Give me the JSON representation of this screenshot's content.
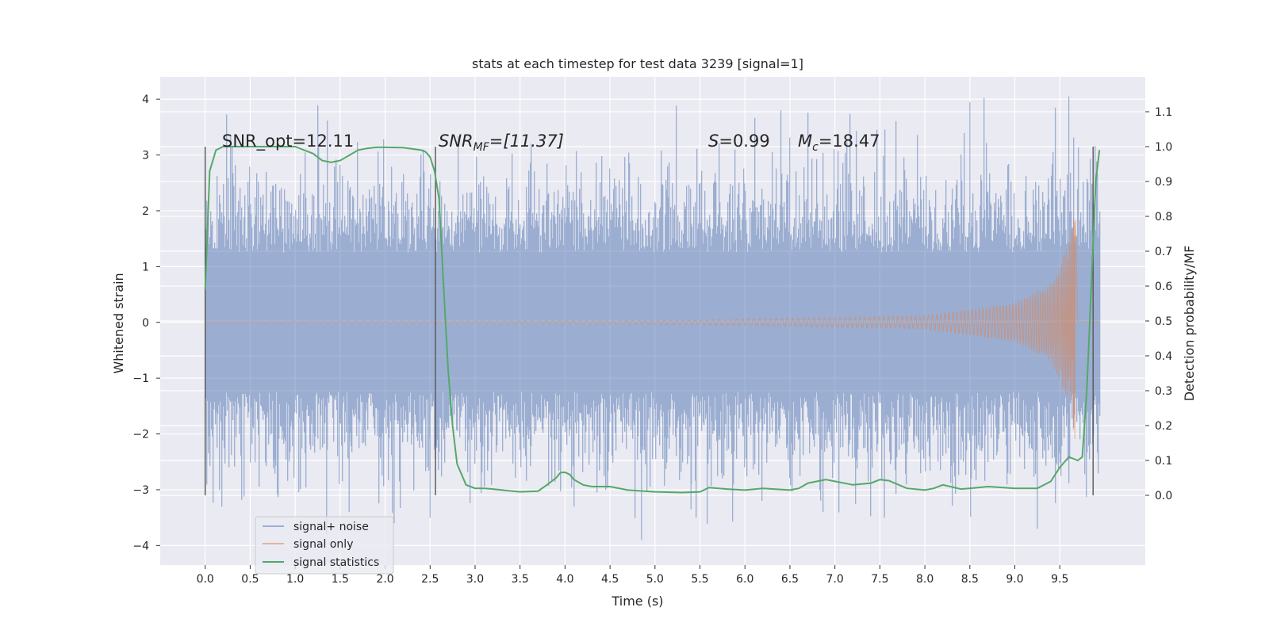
{
  "chart_data": {
    "type": "line",
    "title": "stats at each timestep for test data 3239 [signal=1]",
    "xlabel": "Time (s)",
    "ylabel": "Whitened strain",
    "y2label": "Detection probability/MF",
    "xlim": [
      -0.5,
      10.45
    ],
    "ylim": [
      -4.35,
      4.4
    ],
    "y2lim": [
      -0.2,
      1.2
    ],
    "x_ticks": [
      "0.0",
      "0.5",
      "1.0",
      "1.5",
      "2.0",
      "2.5",
      "3.0",
      "3.5",
      "4.0",
      "4.5",
      "5.0",
      "5.5",
      "6.0",
      "6.5",
      "7.0",
      "7.5",
      "8.0",
      "8.5",
      "9.0",
      "9.5"
    ],
    "y_ticks": [
      "4",
      "3",
      "2",
      "1",
      "0",
      "−1",
      "−2",
      "−3",
      "−4"
    ],
    "y2_ticks": [
      "1.1",
      "1.0",
      "0.9",
      "0.8",
      "0.7",
      "0.6",
      "0.5",
      "0.4",
      "0.3",
      "0.2",
      "0.1",
      "0.0"
    ],
    "grid": true,
    "background": "#eaeaf2",
    "legend_position": "lower-left",
    "annotations": {
      "snr_opt": "SNR_opt=12.11",
      "snr_mf_name": "SNR",
      "snr_mf_sub": "MF",
      "snr_mf_value": "=[11.37]",
      "s_name": "S",
      "s_value": "=0.99",
      "mc_name": "M",
      "mc_sub": "c",
      "mc_value": "=18.47"
    },
    "vertical_markers_x": [
      0.0,
      2.56,
      9.87
    ],
    "series": [
      {
        "name": "signal+ noise",
        "color": "#4c72b0",
        "opacity": 0.5,
        "axis": "left",
        "t_range": [
          0.0,
          9.95
        ],
        "noise_envelope_std": 1.0,
        "peak_max": 4.05,
        "peak_min": -3.95
      },
      {
        "name": "signal only",
        "color": "#dd8452",
        "opacity": 0.55,
        "axis": "left",
        "amplitude_envelope": [
          [
            0.0,
            0.01
          ],
          [
            5.0,
            0.03
          ],
          [
            8.0,
            0.12
          ],
          [
            9.0,
            0.35
          ],
          [
            9.4,
            0.7
          ],
          [
            9.6,
            1.4
          ],
          [
            9.68,
            2.25
          ]
        ],
        "merger_t": 9.68
      },
      {
        "name": "signal statistics",
        "color": "#55a868",
        "axis": "right",
        "x": [
          0.0,
          0.05,
          0.12,
          0.2,
          0.3,
          0.5,
          0.7,
          1.0,
          1.1,
          1.2,
          1.3,
          1.4,
          1.5,
          1.6,
          1.7,
          1.8,
          1.9,
          2.0,
          2.2,
          2.4,
          2.45,
          2.5,
          2.55,
          2.6,
          2.65,
          2.7,
          2.75,
          2.8,
          2.9,
          3.0,
          3.1,
          3.2,
          3.3,
          3.5,
          3.7,
          3.8,
          3.9,
          3.95,
          4.0,
          4.05,
          4.1,
          4.2,
          4.3,
          4.5,
          4.7,
          5.0,
          5.3,
          5.5,
          5.6,
          5.8,
          6.0,
          6.2,
          6.5,
          6.6,
          6.7,
          6.9,
          7.0,
          7.2,
          7.4,
          7.5,
          7.6,
          7.8,
          8.0,
          8.1,
          8.2,
          8.4,
          8.5,
          8.7,
          9.0,
          9.25,
          9.4,
          9.5,
          9.6,
          9.7,
          9.75,
          9.8,
          9.85,
          9.9,
          9.94
        ],
        "y": [
          0.59,
          0.93,
          0.99,
          1.0,
          1.0,
          1.0,
          1.0,
          1.0,
          0.99,
          0.98,
          0.96,
          0.955,
          0.96,
          0.975,
          0.99,
          0.995,
          0.998,
          0.998,
          0.997,
          0.99,
          0.985,
          0.97,
          0.93,
          0.85,
          0.6,
          0.36,
          0.2,
          0.09,
          0.03,
          0.02,
          0.02,
          0.018,
          0.015,
          0.01,
          0.012,
          0.03,
          0.05,
          0.065,
          0.066,
          0.06,
          0.045,
          0.03,
          0.025,
          0.025,
          0.015,
          0.01,
          0.008,
          0.01,
          0.022,
          0.018,
          0.015,
          0.02,
          0.015,
          0.02,
          0.035,
          0.045,
          0.04,
          0.03,
          0.035,
          0.045,
          0.042,
          0.02,
          0.015,
          0.02,
          0.03,
          0.018,
          0.02,
          0.025,
          0.02,
          0.02,
          0.04,
          0.08,
          0.11,
          0.1,
          0.11,
          0.3,
          0.6,
          0.9,
          0.99
        ]
      }
    ]
  }
}
